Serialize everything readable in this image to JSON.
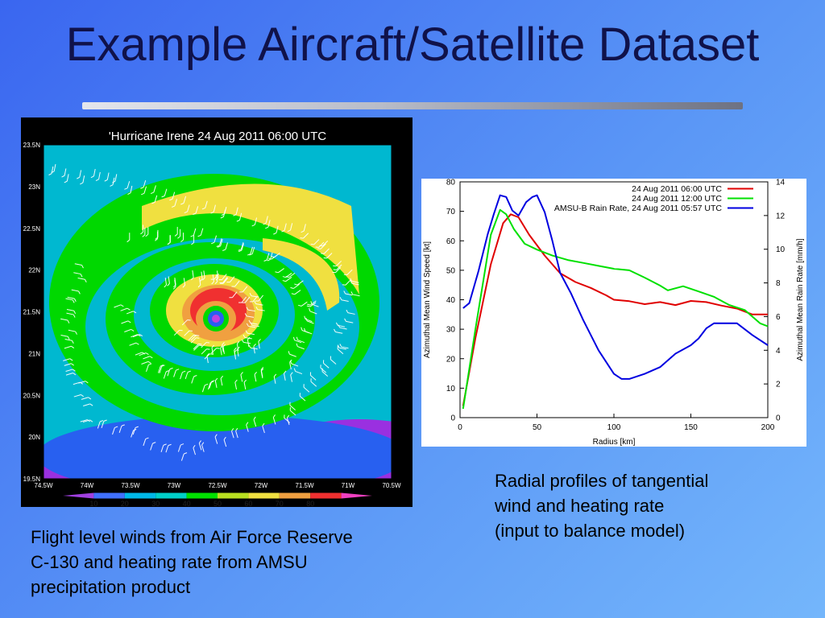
{
  "slide": {
    "title": "Example Aircraft/Satellite Dataset",
    "caption_right": [
      "Radial profiles of tangential",
      "wind and heating rate",
      "(input to balance model)"
    ],
    "caption_left": [
      "Flight level winds from Air Force Reserve",
      "C-130 and heating rate from AMSU",
      "precipitation product"
    ]
  },
  "map": {
    "title": "'Hurricane Irene 24 Aug 2011 06:00 UTC",
    "lat_labels": [
      "23.5N",
      "23N",
      "22.5N",
      "22N",
      "21.5N",
      "21N",
      "20.5N",
      "20N",
      "19.5N"
    ],
    "lon_labels": [
      "74.5W",
      "74W",
      "73.5W",
      "73W",
      "72.5W",
      "72W",
      "71.5W",
      "71W",
      "70.5W"
    ],
    "colorbar_labels": [
      "10",
      "20",
      "30",
      "40",
      "50",
      "60",
      "70",
      "80"
    ],
    "colorbar_colors": [
      "#a040e0",
      "#4070ff",
      "#00b8e8",
      "#00d0c8",
      "#00e000",
      "#b8e020",
      "#f0e040",
      "#f0a040",
      "#f03030",
      "#f040c0"
    ]
  },
  "chart_data": {
    "type": "line",
    "title": "",
    "xlabel": "Radius [km]",
    "ylabel": "Azimuthal Mean Wind Speed [kt]",
    "y2label": "Azimuthal Mean Rain Rate [mm/h]",
    "xlim": [
      0,
      200
    ],
    "ylim": [
      0,
      80
    ],
    "y2lim": [
      0,
      14
    ],
    "xticks": [
      "0",
      "50",
      "100",
      "150",
      "200"
    ],
    "yticks": [
      "0",
      "10",
      "20",
      "30",
      "40",
      "50",
      "60",
      "70",
      "80"
    ],
    "y2ticks": [
      "0",
      "2",
      "4",
      "6",
      "8",
      "10",
      "12",
      "14"
    ],
    "legend_position": "top-right",
    "series": [
      {
        "name": "24 Aug 2011 06:00 UTC",
        "color": "#e00000",
        "axis": "left",
        "x": [
          2,
          10,
          20,
          28,
          33,
          38,
          45,
          55,
          65,
          75,
          85,
          95,
          100,
          110,
          120,
          130,
          140,
          150,
          160,
          170,
          180,
          190,
          200
        ],
        "y": [
          4,
          27,
          52,
          66,
          69,
          68,
          62,
          55,
          49,
          46,
          44,
          41.5,
          40,
          39.5,
          38.5,
          39.2,
          38.2,
          39.6,
          39.2,
          38,
          37,
          35,
          35
        ]
      },
      {
        "name": "24 Aug 2011 12:00 UTC",
        "color": "#00e000",
        "axis": "left",
        "x": [
          2,
          10,
          20,
          26,
          30,
          35,
          42,
          50,
          60,
          70,
          80,
          90,
          100,
          110,
          120,
          130,
          135,
          145,
          155,
          165,
          175,
          185,
          195,
          200
        ],
        "y": [
          3,
          30,
          62,
          70.5,
          69,
          64,
          59,
          57,
          55,
          53.5,
          52.5,
          51.5,
          50.5,
          50,
          47.5,
          44.8,
          43.2,
          44.6,
          42.8,
          41,
          38.2,
          36.5,
          32,
          31
        ]
      },
      {
        "name": "AMSU-B Rain Rate, 24 Aug 2011 05:57 UTC",
        "color": "#0000e0",
        "axis": "right",
        "x": [
          2,
          6,
          12,
          18,
          22,
          26,
          30,
          34,
          38,
          43,
          47,
          50,
          55,
          60,
          65,
          72,
          80,
          90,
          100,
          105,
          110,
          120,
          130,
          140,
          150,
          155,
          160,
          165,
          170,
          175,
          180,
          190,
          200
        ],
        "y": [
          6.5,
          6.8,
          8.7,
          10.9,
          12.1,
          13.2,
          13.1,
          12.3,
          12,
          12.8,
          13.1,
          13.2,
          12.2,
          10.5,
          8.6,
          7.4,
          5.8,
          4,
          2.6,
          2.3,
          2.3,
          2.6,
          3,
          3.8,
          4.3,
          4.7,
          5.3,
          5.6,
          5.6,
          5.6,
          5.6,
          4.9,
          4.3
        ]
      }
    ]
  }
}
